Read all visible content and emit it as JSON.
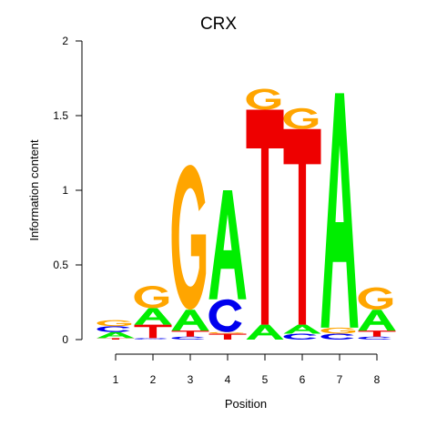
{
  "chart_data": {
    "type": "sequence-logo",
    "title": "CRX",
    "xlabel": "Position",
    "ylabel": "Information content",
    "ylim": [
      0,
      2
    ],
    "y_ticks": [
      "0",
      "0.5",
      "1",
      "1.5",
      "2"
    ],
    "positions": [
      "1",
      "2",
      "3",
      "4",
      "5",
      "6",
      "7",
      "8"
    ],
    "colors": {
      "A": "#00ee00",
      "C": "#0000ee",
      "G": "#ffa500",
      "T": "#ee0000"
    },
    "stacks": [
      [
        {
          "letter": "T",
          "value": 0.01
        },
        {
          "letter": "A",
          "value": 0.04
        },
        {
          "letter": "C",
          "value": 0.04
        },
        {
          "letter": "G",
          "value": 0.04
        }
      ],
      [
        {
          "letter": "C",
          "value": 0.01
        },
        {
          "letter": "T",
          "value": 0.09
        },
        {
          "letter": "A",
          "value": 0.11
        },
        {
          "letter": "G",
          "value": 0.15
        }
      ],
      [
        {
          "letter": "C",
          "value": 0.02
        },
        {
          "letter": "T",
          "value": 0.04
        },
        {
          "letter": "A",
          "value": 0.14
        },
        {
          "letter": "G",
          "value": 0.97
        }
      ],
      [
        {
          "letter": "T",
          "value": 0.04
        },
        {
          "letter": "G",
          "value": 0.01
        },
        {
          "letter": "C",
          "value": 0.22
        },
        {
          "letter": "A",
          "value": 0.73
        }
      ],
      [
        {
          "letter": "A",
          "value": 0.1
        },
        {
          "letter": "T",
          "value": 1.44
        },
        {
          "letter": "G",
          "value": 0.14
        }
      ],
      [
        {
          "letter": "C",
          "value": 0.04
        },
        {
          "letter": "A",
          "value": 0.06
        },
        {
          "letter": "T",
          "value": 1.31
        },
        {
          "letter": "G",
          "value": 0.14
        }
      ],
      [
        {
          "letter": "C",
          "value": 0.04
        },
        {
          "letter": "G",
          "value": 0.04
        },
        {
          "letter": "A",
          "value": 1.57
        }
      ],
      [
        {
          "letter": "C",
          "value": 0.02
        },
        {
          "letter": "T",
          "value": 0.04
        },
        {
          "letter": "A",
          "value": 0.14
        },
        {
          "letter": "G",
          "value": 0.15
        }
      ]
    ]
  }
}
